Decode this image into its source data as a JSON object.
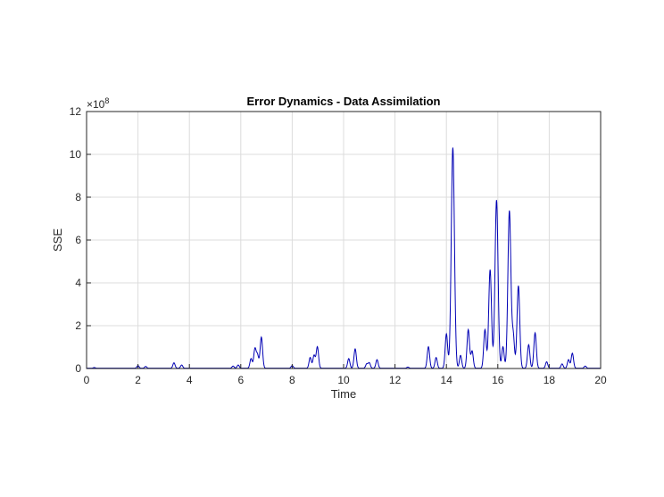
{
  "chart_data": {
    "type": "line",
    "title": "Error Dynamics - Data Assimilation",
    "xlabel": "Time",
    "ylabel": "SSE",
    "y_scale_exponent": "×10",
    "y_scale_power": "8",
    "xlim": [
      0,
      20
    ],
    "ylim": [
      0,
      12
    ],
    "x_ticks": [
      "0",
      "2",
      "4",
      "6",
      "8",
      "10",
      "12",
      "14",
      "16",
      "18",
      "20"
    ],
    "y_ticks": [
      "0",
      "2",
      "4",
      "6",
      "8",
      "10",
      "12"
    ],
    "grid": true,
    "line_color": "#0000b4",
    "peaks": [
      {
        "x": 0.3,
        "y": 0.03
      },
      {
        "x": 2.0,
        "y": 0.12
      },
      {
        "x": 2.3,
        "y": 0.08
      },
      {
        "x": 3.4,
        "y": 0.25
      },
      {
        "x": 3.7,
        "y": 0.15
      },
      {
        "x": 5.7,
        "y": 0.1
      },
      {
        "x": 5.9,
        "y": 0.15
      },
      {
        "x": 6.4,
        "y": 0.45
      },
      {
        "x": 6.55,
        "y": 0.9
      },
      {
        "x": 6.65,
        "y": 0.6
      },
      {
        "x": 6.8,
        "y": 1.45
      },
      {
        "x": 8.0,
        "y": 0.12
      },
      {
        "x": 8.7,
        "y": 0.5
      },
      {
        "x": 8.85,
        "y": 0.6
      },
      {
        "x": 8.98,
        "y": 1.0
      },
      {
        "x": 10.2,
        "y": 0.45
      },
      {
        "x": 10.45,
        "y": 0.9
      },
      {
        "x": 10.9,
        "y": 0.2
      },
      {
        "x": 11.0,
        "y": 0.25
      },
      {
        "x": 11.3,
        "y": 0.4
      },
      {
        "x": 12.5,
        "y": 0.05
      },
      {
        "x": 13.3,
        "y": 1.0
      },
      {
        "x": 13.6,
        "y": 0.5
      },
      {
        "x": 14.0,
        "y": 1.6
      },
      {
        "x": 14.25,
        "y": 10.3
      },
      {
        "x": 14.55,
        "y": 0.6
      },
      {
        "x": 14.85,
        "y": 1.8
      },
      {
        "x": 15.0,
        "y": 0.8
      },
      {
        "x": 15.5,
        "y": 1.8
      },
      {
        "x": 15.7,
        "y": 4.6
      },
      {
        "x": 15.95,
        "y": 7.85
      },
      {
        "x": 16.2,
        "y": 1.0
      },
      {
        "x": 16.45,
        "y": 7.35
      },
      {
        "x": 16.6,
        "y": 1.5
      },
      {
        "x": 16.8,
        "y": 3.85
      },
      {
        "x": 17.2,
        "y": 1.1
      },
      {
        "x": 17.45,
        "y": 1.65
      },
      {
        "x": 17.9,
        "y": 0.3
      },
      {
        "x": 18.5,
        "y": 0.2
      },
      {
        "x": 18.75,
        "y": 0.4
      },
      {
        "x": 18.9,
        "y": 0.7
      },
      {
        "x": 19.4,
        "y": 0.1
      }
    ]
  }
}
